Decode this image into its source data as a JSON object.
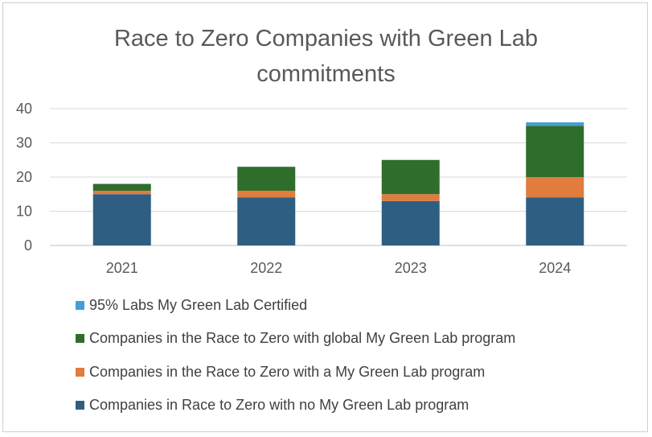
{
  "chart_data": {
    "type": "bar",
    "stacked": true,
    "title": "Race to Zero Companies with Green Lab commitments",
    "xlabel": "",
    "ylabel": "",
    "ylim": [
      0,
      40
    ],
    "yticks": [
      0,
      10,
      20,
      30,
      40
    ],
    "grid": true,
    "legend_position": "bottom",
    "categories": [
      "2021",
      "2022",
      "2023",
      "2024"
    ],
    "series": [
      {
        "name": "Companies in Race to Zero with no My Green Lab program",
        "color": "#2e5f82",
        "values": [
          15,
          14,
          13,
          14
        ]
      },
      {
        "name": "Companies in the Race to Zero with a My Green Lab program",
        "color": "#e07c3e",
        "values": [
          1,
          2,
          2,
          6
        ]
      },
      {
        "name": "Companies in the Race to Zero with global My Green Lab program",
        "color": "#2f6d2c",
        "values": [
          2,
          7,
          10,
          15
        ]
      },
      {
        "name": "95% Labs My Green Lab Certified",
        "color": "#41a0d7",
        "values": [
          0,
          0,
          0,
          1
        ]
      }
    ]
  }
}
